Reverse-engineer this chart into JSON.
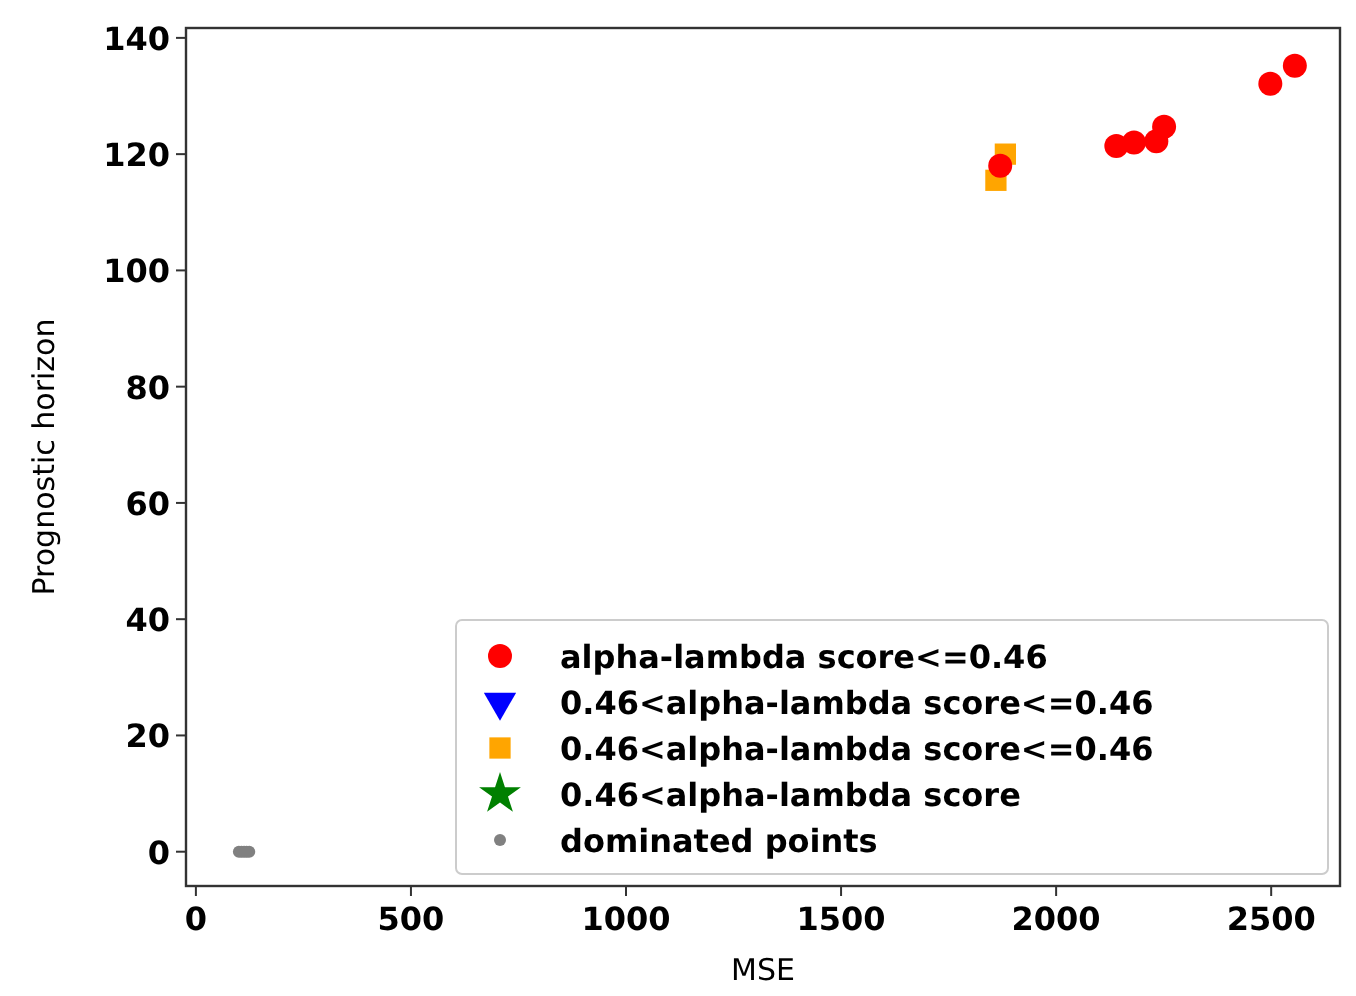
{
  "chart_data": {
    "type": "scatter",
    "xlabel": "MSE",
    "ylabel": "Prognostic horizon",
    "xlim": [
      -23,
      2660
    ],
    "ylim": [
      -5.9,
      141.7
    ],
    "xticks": [
      0,
      500,
      1000,
      1500,
      2000,
      2500
    ],
    "yticks": [
      0,
      20,
      40,
      60,
      80,
      100,
      120,
      140
    ],
    "grid": false,
    "legend": "bottom right",
    "series": [
      {
        "name": "alpha-lambda score<=0.46",
        "color": "#ff0000",
        "marker": "circle",
        "x": [
          1870,
          2140,
          2181,
          2233,
          2251,
          2498,
          2555
        ],
        "values": [
          118,
          121.4,
          122,
          122.2,
          124.7,
          132.1,
          135.2
        ]
      },
      {
        "name": "0.46<alpha-lambda score<=0.46",
        "color": "#0000ff",
        "marker": "triangle"
      },
      {
        "name": "0.46<alpha-lambda score<=0.46",
        "color": "#ffa500",
        "marker": "square",
        "x": [
          1860,
          1882
        ],
        "values": [
          115.5,
          120
        ]
      },
      {
        "name": "0.46<alpha-lambda score",
        "color": "#008000",
        "marker": "star"
      },
      {
        "name": "dominated points",
        "color": "#808080",
        "marker": "circle",
        "x": [
          100,
          106,
          112,
          118,
          124
        ],
        "values": [
          0,
          0,
          0,
          0,
          0
        ]
      }
    ]
  }
}
